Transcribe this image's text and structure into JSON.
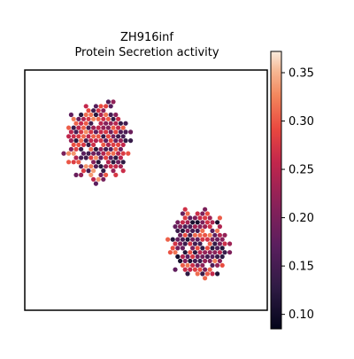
{
  "chart_data": {
    "type": "heatmap",
    "title": "ZH916inf",
    "subtitle": "Protein Secretion activity",
    "xlabel": "",
    "ylabel": "",
    "colormap": "rocket",
    "colorbar": {
      "ticks": [
        0.1,
        0.15,
        0.2,
        0.25,
        0.3,
        0.35
      ],
      "tick_labels": [
        "0.10",
        "0.15",
        "0.20",
        "0.25",
        "0.30",
        "0.35"
      ],
      "vmin": 0.085,
      "vmax": 0.372
    },
    "clusters": [
      {
        "name": "upper",
        "center": [
          0.3,
          0.7
        ],
        "spread": [
          0.13,
          0.16
        ],
        "value_range": [
          0.12,
          0.34
        ]
      },
      {
        "name": "lower",
        "center": [
          0.72,
          0.28
        ],
        "spread": [
          0.12,
          0.14
        ],
        "value_range": [
          0.1,
          0.33
        ]
      }
    ],
    "grid": false,
    "legend": "colorbar-right"
  }
}
